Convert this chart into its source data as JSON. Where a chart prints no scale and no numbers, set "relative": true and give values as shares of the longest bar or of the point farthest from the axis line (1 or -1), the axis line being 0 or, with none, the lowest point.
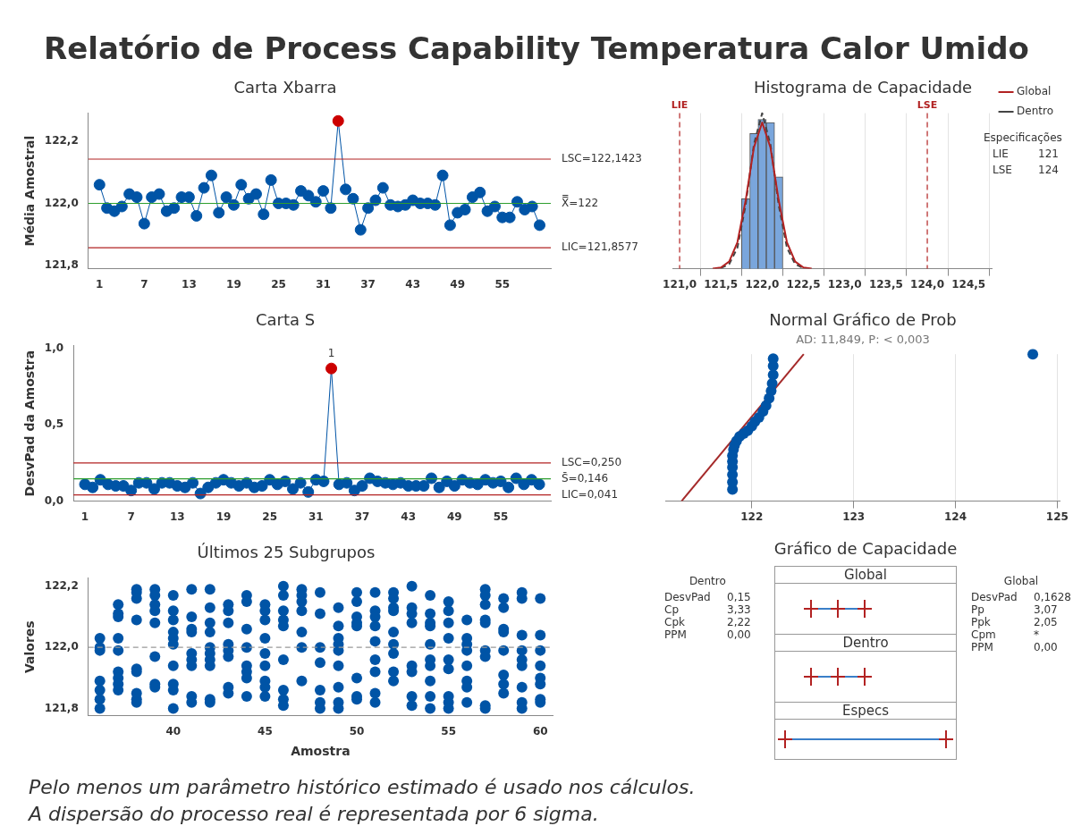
{
  "chart_data": [
    {
      "type": "other",
      "title": "Relatório de Process Capability Temperatura Calor Umido",
      "annotations": [
        "Pelo menos um parâmetro histórico estimado é usado nos cálculos.",
        "A dispersão do processo real é representada por 6 sigma."
      ]
    },
    {
      "type": "line",
      "title": "Carta Xbarra",
      "ylabel": "Média Amostral",
      "marker": "circle",
      "x": [
        1,
        2,
        3,
        4,
        5,
        6,
        7,
        8,
        9,
        10,
        11,
        12,
        13,
        14,
        15,
        16,
        17,
        18,
        19,
        20,
        21,
        22,
        23,
        24,
        25,
        26,
        27,
        28,
        29,
        30,
        31,
        32,
        33,
        34,
        35,
        36,
        37,
        38,
        39,
        40,
        41,
        42,
        43,
        44,
        45,
        46,
        47,
        48,
        49,
        50,
        51,
        52,
        53,
        54,
        55,
        56,
        57,
        58,
        59,
        60
      ],
      "series": [
        {
          "color": "#0054a6",
          "values": [
            122.06,
            121.985,
            121.975,
            121.99,
            122.03,
            122.02,
            121.935,
            122.02,
            122.03,
            121.975,
            121.985,
            122.02,
            122.02,
            121.96,
            122.05,
            122.09,
            121.97,
            122.02,
            121.995,
            122.06,
            122.015,
            122.03,
            121.965,
            122.075,
            122.0,
            122.0,
            121.995,
            122.04,
            122.025,
            122.005,
            122.04,
            121.985,
            122.265,
            122.045,
            122.015,
            121.915,
            121.985,
            122.01,
            122.05,
            121.995,
            121.99,
            121.995,
            122.01,
            122.0,
            122.0,
            121.995,
            122.09,
            121.93,
            121.97,
            121.98,
            122.02,
            122.035,
            121.975,
            121.99,
            121.955,
            121.955,
            122.005,
            121.98,
            121.99,
            121.93
          ],
          "colors": [
            "#0054a6",
            "#0054a6",
            "#0054a6",
            "#0054a6",
            "#0054a6",
            "#0054a6",
            "#0054a6",
            "#0054a6",
            "#0054a6",
            "#0054a6",
            "#0054a6",
            "#0054a6",
            "#0054a6",
            "#0054a6",
            "#0054a6",
            "#0054a6",
            "#0054a6",
            "#0054a6",
            "#0054a6",
            "#0054a6",
            "#0054a6",
            "#0054a6",
            "#0054a6",
            "#0054a6",
            "#0054a6",
            "#0054a6",
            "#0054a6",
            "#0054a6",
            "#0054a6",
            "#0054a6",
            "#0054a6",
            "#0054a6",
            "#cc0000",
            "#0054a6",
            "#0054a6",
            "#0054a6",
            "#0054a6",
            "#0054a6",
            "#0054a6",
            "#0054a6",
            "#0054a6",
            "#0054a6",
            "#0054a6",
            "#0054a6",
            "#0054a6",
            "#0054a6",
            "#0054a6",
            "#0054a6",
            "#0054a6",
            "#0054a6",
            "#0054a6",
            "#0054a6",
            "#0054a6",
            "#0054a6",
            "#0054a6",
            "#0054a6",
            "#0054a6",
            "#0054a6",
            "#0054a6",
            "#0054a6"
          ]
        }
      ],
      "xlim": [
        -0.5,
        61.5
      ],
      "xticks": [
        1,
        7,
        13,
        19,
        25,
        31,
        37,
        43,
        49,
        55
      ],
      "ylim": [
        121.79,
        122.29
      ],
      "yticks": [
        {
          "value": 121.8,
          "label": "121,8"
        },
        {
          "value": 122.0,
          "label": "122,0"
        },
        {
          "value": 122.2,
          "label": "122,2"
        }
      ],
      "ref_lines": [
        {
          "axis": "y",
          "value": 122.1423,
          "label": "LSC=122,1423",
          "color": "#b22222"
        },
        {
          "axis": "y",
          "value": 122,
          "label": "X̿=122",
          "color": "#2e9e2e"
        },
        {
          "axis": "y",
          "value": 121.8577,
          "label": "LIC=121,8577",
          "color": "#b22222"
        }
      ]
    },
    {
      "type": "histogram",
      "title": "Histograma de Capacidade",
      "relative": true,
      "color": "#7aa6dc",
      "bins": [
        121.75,
        121.85,
        121.95,
        122.05,
        122.15,
        122.25
      ],
      "values": [
        0.45,
        0.87,
        0.96,
        0.94,
        0.59
      ],
      "series": [
        {
          "name": "Global",
          "type": "line",
          "marker": "none",
          "line_style": "solid",
          "color": "#b22222",
          "x": [
            121.4,
            121.5,
            121.6,
            121.7,
            121.8,
            121.9,
            122.0,
            122.1,
            122.2,
            122.3,
            122.4,
            122.5,
            122.6
          ],
          "values": [
            0.001,
            0.008,
            0.046,
            0.17,
            0.44,
            0.78,
            0.94,
            0.78,
            0.44,
            0.17,
            0.046,
            0.008,
            0.001
          ]
        },
        {
          "name": "Dentro",
          "type": "line",
          "marker": "none",
          "line_style": "dashed",
          "color": "#444444",
          "x": [
            121.5,
            121.6,
            121.7,
            121.8,
            121.9,
            122.0,
            122.1,
            122.2,
            122.3,
            122.4,
            122.5
          ],
          "values": [
            0.004,
            0.029,
            0.135,
            0.41,
            0.8,
            1.0,
            0.8,
            0.41,
            0.135,
            0.029,
            0.004
          ]
        }
      ],
      "xlim": [
        120.92,
        124.78
      ],
      "xticks": [
        {
          "value": 121,
          "label": "121,0"
        },
        {
          "value": 121.5,
          "label": "121,5"
        },
        {
          "value": 122,
          "label": "122,0"
        },
        {
          "value": 122.5,
          "label": "122,5"
        },
        {
          "value": 123,
          "label": "123,0"
        },
        {
          "value": 123.5,
          "label": "123,5"
        },
        {
          "value": 124,
          "label": "124,0"
        },
        {
          "value": 124.5,
          "label": "124,5"
        }
      ],
      "grid": "x",
      "legend": "top right",
      "ref_lines": [
        {
          "axis": "x",
          "value": 121,
          "label": "LIE",
          "color": "#b22222",
          "line_style": "dashed"
        },
        {
          "axis": "x",
          "value": 124,
          "label": "LSE",
          "color": "#b22222",
          "line_style": "dashed"
        }
      ],
      "annotations": [
        "Especificações",
        "LIE\t121",
        "LSE\t124"
      ]
    },
    {
      "type": "line",
      "title": "Carta S",
      "ylabel": "DesvPad da Amostra",
      "marker": "circle",
      "x": [
        1,
        2,
        3,
        4,
        5,
        6,
        7,
        8,
        9,
        10,
        11,
        12,
        13,
        14,
        15,
        16,
        17,
        18,
        19,
        20,
        21,
        22,
        23,
        24,
        25,
        26,
        27,
        28,
        29,
        30,
        31,
        32,
        33,
        34,
        35,
        36,
        37,
        38,
        39,
        40,
        41,
        42,
        43,
        44,
        45,
        46,
        47,
        48,
        49,
        50,
        51,
        52,
        53,
        54,
        55,
        56,
        57,
        58,
        59,
        60
      ],
      "series": [
        {
          "color": "#0054a6",
          "values": [
            0.11,
            0.09,
            0.14,
            0.11,
            0.1,
            0.1,
            0.07,
            0.12,
            0.12,
            0.08,
            0.12,
            0.12,
            0.1,
            0.09,
            0.12,
            0.05,
            0.09,
            0.12,
            0.14,
            0.12,
            0.1,
            0.12,
            0.09,
            0.1,
            0.14,
            0.11,
            0.13,
            0.08,
            0.12,
            0.06,
            0.14,
            0.13,
            0.87,
            0.11,
            0.12,
            0.07,
            0.1,
            0.15,
            0.13,
            0.12,
            0.11,
            0.12,
            0.1,
            0.1,
            0.1,
            0.15,
            0.09,
            0.13,
            0.1,
            0.14,
            0.12,
            0.11,
            0.14,
            0.12,
            0.13,
            0.09,
            0.15,
            0.11,
            0.14,
            0.11
          ],
          "colors": [
            "#0054a6",
            "#0054a6",
            "#0054a6",
            "#0054a6",
            "#0054a6",
            "#0054a6",
            "#0054a6",
            "#0054a6",
            "#0054a6",
            "#0054a6",
            "#0054a6",
            "#0054a6",
            "#0054a6",
            "#0054a6",
            "#0054a6",
            "#0054a6",
            "#0054a6",
            "#0054a6",
            "#0054a6",
            "#0054a6",
            "#0054a6",
            "#0054a6",
            "#0054a6",
            "#0054a6",
            "#0054a6",
            "#0054a6",
            "#0054a6",
            "#0054a6",
            "#0054a6",
            "#0054a6",
            "#0054a6",
            "#0054a6",
            "#cc0000",
            "#0054a6",
            "#0054a6",
            "#0054a6",
            "#0054a6",
            "#0054a6",
            "#0054a6",
            "#0054a6",
            "#0054a6",
            "#0054a6",
            "#0054a6",
            "#0054a6",
            "#0054a6",
            "#0054a6",
            "#0054a6",
            "#0054a6",
            "#0054a6",
            "#0054a6",
            "#0054a6",
            "#0054a6",
            "#0054a6",
            "#0054a6",
            "#0054a6",
            "#0054a6",
            "#0054a6",
            "#0054a6",
            "#0054a6",
            "#0054a6"
          ]
        }
      ],
      "xlim": [
        -0.5,
        61.5
      ],
      "xticks": [
        1,
        7,
        13,
        19,
        25,
        31,
        37,
        43,
        49,
        55
      ],
      "ylim": [
        0,
        1.02
      ],
      "yticks": [
        {
          "value": 0,
          "label": "0,0"
        },
        {
          "value": 0.5,
          "label": "0,5"
        },
        {
          "value": 1,
          "label": "1,0"
        }
      ],
      "ref_lines": [
        {
          "axis": "y",
          "value": 0.25,
          "label": "LSC=0,250",
          "color": "#b22222"
        },
        {
          "axis": "y",
          "value": 0.146,
          "label": "S̄=0,146",
          "color": "#2e9e2e"
        },
        {
          "axis": "y",
          "value": 0.041,
          "label": "LIC=0,041",
          "color": "#b22222"
        }
      ],
      "annotations": [
        {
          "text": "1",
          "x": 33,
          "y": 0.87
        }
      ]
    },
    {
      "type": "scatter",
      "title": "Normal Gráfico de Prob",
      "subtitle": "AD: 11,849, P: < 0,003",
      "relative": true,
      "marker": "circle",
      "grid": "x",
      "series": [
        {
          "color": "#0054a6",
          "x": [
            121.81,
            121.81,
            121.81,
            121.81,
            121.81,
            121.81,
            121.82,
            121.83,
            121.85,
            121.88,
            121.92,
            121.96,
            122.0,
            122.03,
            122.07,
            122.11,
            122.14,
            122.17,
            122.19,
            122.2,
            122.21,
            122.21,
            122.21,
            124.76
          ],
          "values": [
            0.08,
            0.13,
            0.18,
            0.23,
            0.27,
            0.31,
            0.35,
            0.38,
            0.41,
            0.44,
            0.46,
            0.48,
            0.51,
            0.54,
            0.57,
            0.61,
            0.65,
            0.7,
            0.75,
            0.8,
            0.86,
            0.92,
            0.97,
            1.0
          ]
        },
        {
          "type": "line",
          "marker": "none",
          "color": "#a52a2a",
          "x": [
            121.31,
            122.51
          ],
          "values": [
            0,
            1
          ]
        }
      ],
      "xlim": [
        121.15,
        125.03
      ],
      "xticks": [
        122,
        123,
        124,
        125
      ]
    },
    {
      "type": "scatter",
      "title": "Últimos 25 Subgrupos",
      "xlabel": "Amostra",
      "ylabel": "Valores",
      "marker": "circle",
      "series": [
        {
          "color": "#0054a6",
          "x": [
            36,
            36,
            36,
            36,
            36,
            36,
            36,
            37,
            37,
            37,
            37,
            37,
            37,
            37,
            37,
            37,
            38,
            38,
            38,
            38,
            38,
            38,
            38,
            38,
            38,
            39,
            39,
            39,
            39,
            39,
            39,
            39,
            39,
            40,
            40,
            40,
            40,
            40,
            40,
            40,
            40,
            40,
            40,
            41,
            41,
            41,
            41,
            41,
            41,
            41,
            41,
            41,
            42,
            42,
            42,
            42,
            42,
            42,
            42,
            42,
            42,
            42,
            43,
            43,
            43,
            43,
            43,
            43,
            43,
            43,
            44,
            44,
            44,
            44,
            44,
            44,
            44,
            44,
            45,
            45,
            45,
            45,
            45,
            45,
            45,
            45,
            45,
            46,
            46,
            46,
            46,
            46,
            46,
            46,
            46,
            46,
            47,
            47,
            47,
            47,
            47,
            47,
            47,
            48,
            48,
            48,
            48,
            48,
            48,
            48,
            49,
            49,
            49,
            49,
            49,
            49,
            49,
            49,
            49,
            50,
            50,
            50,
            50,
            50,
            50,
            50,
            50,
            51,
            51,
            51,
            51,
            51,
            51,
            51,
            51,
            51,
            52,
            52,
            52,
            52,
            52,
            52,
            52,
            52,
            52,
            53,
            53,
            53,
            53,
            53,
            53,
            53,
            53,
            54,
            54,
            54,
            54,
            54,
            54,
            54,
            54,
            54,
            54,
            55,
            55,
            55,
            55,
            55,
            55,
            55,
            55,
            55,
            56,
            56,
            56,
            56,
            56,
            56,
            56,
            56,
            57,
            57,
            57,
            57,
            57,
            57,
            57,
            57,
            57,
            58,
            58,
            58,
            58,
            58,
            58,
            58,
            58,
            59,
            59,
            59,
            59,
            59,
            59,
            59,
            59,
            59,
            60,
            60,
            60,
            60,
            60,
            60,
            60,
            60
          ],
          "values": [
            122.03,
            122.0,
            121.99,
            121.89,
            121.86,
            121.83,
            121.8,
            122.14,
            122.11,
            122.1,
            122.03,
            121.99,
            121.92,
            121.9,
            121.88,
            121.86,
            122.19,
            122.18,
            122.16,
            122.09,
            121.93,
            121.92,
            121.85,
            121.83,
            121.82,
            122.19,
            122.17,
            122.14,
            122.12,
            122.08,
            121.97,
            121.88,
            121.87,
            122.17,
            122.12,
            122.09,
            122.05,
            122.03,
            122.01,
            121.94,
            121.88,
            121.86,
            121.8,
            122.19,
            122.1,
            122.06,
            122.05,
            121.98,
            121.96,
            121.94,
            121.84,
            121.82,
            122.19,
            122.13,
            122.08,
            122.05,
            122.0,
            121.98,
            121.96,
            121.94,
            121.83,
            121.82,
            122.14,
            122.12,
            122.08,
            122.01,
            121.99,
            121.97,
            121.87,
            121.85,
            122.17,
            122.15,
            122.06,
            122.0,
            121.94,
            121.92,
            121.9,
            121.84,
            122.14,
            122.12,
            122.09,
            122.03,
            121.98,
            121.94,
            121.89,
            121.87,
            121.84,
            122.2,
            122.17,
            122.12,
            122.09,
            122.07,
            121.96,
            121.86,
            121.83,
            121.81,
            122.19,
            122.17,
            122.15,
            122.12,
            122.05,
            122.0,
            121.89,
            122.18,
            122.11,
            122.0,
            121.95,
            121.86,
            121.82,
            121.8,
            122.13,
            122.07,
            122.03,
            122.01,
            121.99,
            121.94,
            121.87,
            121.82,
            121.8,
            122.18,
            122.15,
            122.1,
            122.08,
            122.07,
            121.9,
            121.84,
            121.83,
            122.18,
            122.12,
            122.1,
            122.07,
            122.02,
            121.96,
            121.92,
            121.85,
            121.82,
            122.18,
            122.16,
            122.13,
            122.12,
            122.05,
            122.01,
            121.98,
            121.92,
            121.89,
            122.2,
            122.13,
            122.11,
            122.08,
            121.94,
            121.92,
            121.84,
            121.81,
            122.17,
            122.11,
            122.08,
            122.07,
            122.01,
            121.96,
            121.94,
            121.89,
            121.84,
            121.8,
            122.15,
            122.12,
            122.08,
            122.03,
            121.96,
            121.93,
            121.84,
            121.82,
            121.8,
            122.09,
            122.03,
            122.01,
            121.99,
            121.94,
            121.89,
            121.87,
            121.82,
            122.19,
            122.17,
            122.14,
            122.09,
            122.08,
            121.99,
            121.97,
            121.81,
            121.8,
            122.16,
            122.13,
            122.06,
            122.05,
            121.99,
            121.91,
            121.88,
            121.85,
            122.18,
            122.16,
            122.04,
            121.99,
            121.96,
            121.94,
            121.87,
            121.82,
            121.8,
            122.16,
            122.04,
            121.99,
            121.94,
            121.9,
            121.88,
            121.83,
            121.82
          ]
        }
      ],
      "xlim": [
        35.37,
        60.67
      ],
      "xticks": [
        40,
        45,
        50,
        55,
        60
      ],
      "ylim": [
        121.776,
        122.227
      ],
      "yticks": [
        {
          "value": 121.8,
          "label": "121,8"
        },
        {
          "value": 122.0,
          "label": "122,0"
        },
        {
          "value": 122.2,
          "label": "122,2"
        }
      ],
      "ref_lines": [
        {
          "axis": "y",
          "value": 122,
          "color": "#999999",
          "line_style": "dashed"
        }
      ]
    },
    {
      "type": "other",
      "title": "Gráfico de Capacidade",
      "categories": [
        "Global",
        "Dentro",
        "Especs"
      ],
      "annotations": [
        "Dentro",
        "DesvPad\t0,15",
        "Cp\t3,33",
        "Cpk\t2,22",
        "PPM\t0,00",
        "Global",
        "DesvPad\t0,1628",
        "Pp\t3,07",
        "Ppk\t2,05",
        "Cpm\t*",
        "PPM\t0,00"
      ]
    }
  ]
}
